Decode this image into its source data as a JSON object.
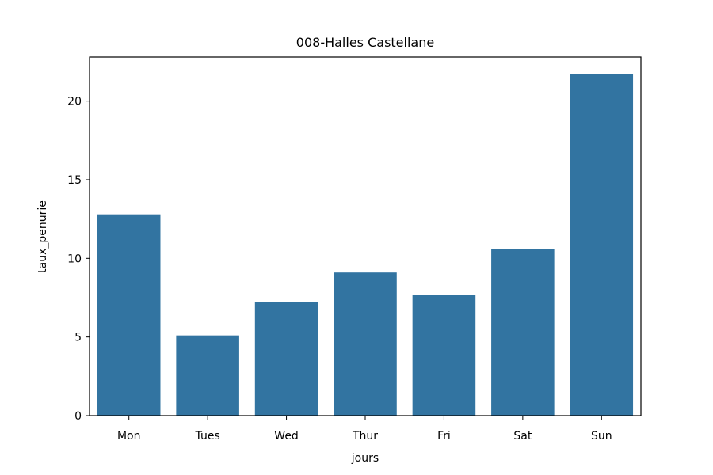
{
  "chart_data": {
    "type": "bar",
    "title": "008-Halles Castellane",
    "xlabel": "jours",
    "ylabel": "taux_penurie",
    "categories": [
      "Mon",
      "Tues",
      "Wed",
      "Thur",
      "Fri",
      "Sat",
      "Sun"
    ],
    "values": [
      12.8,
      5.1,
      7.2,
      9.1,
      7.7,
      10.6,
      21.7
    ],
    "ylim": [
      0,
      22.8
    ],
    "yticks": [
      0,
      5,
      10,
      15,
      20
    ],
    "grid": false,
    "legend": "none",
    "bar_color": "#3274a1"
  }
}
